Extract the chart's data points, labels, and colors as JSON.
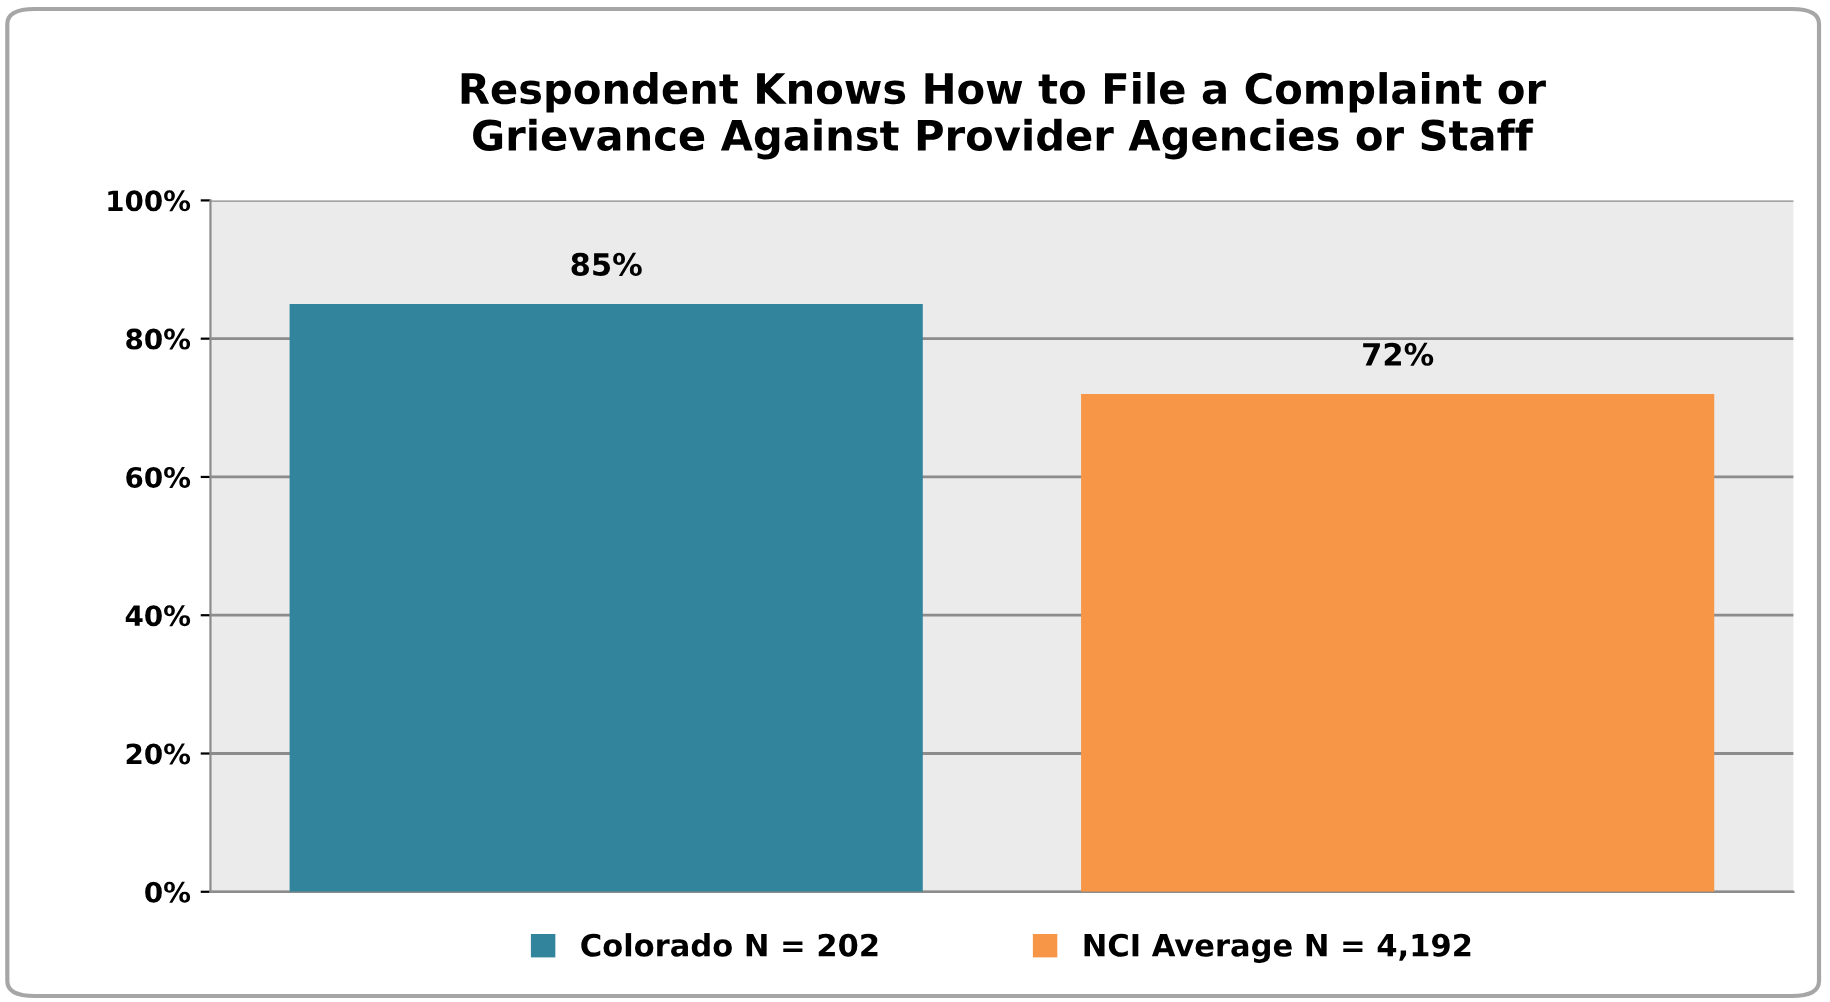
{
  "chart_data": {
    "type": "bar",
    "title": "Respondent Knows How to File a Complaint or\nGrievance Against Provider Agencies or Staff",
    "categories": [
      null,
      null
    ],
    "series": [
      {
        "name": "Colorado N = 202",
        "color": "#31849b",
        "values": [
          85,
          null
        ]
      },
      {
        "name": "NCI Average N = 4,192",
        "color": "#f79646",
        "values": [
          null,
          72
        ]
      }
    ],
    "value_labels": [
      [
        "85%",
        null
      ],
      [
        null,
        "72%"
      ]
    ],
    "ylim": [
      0,
      100
    ],
    "yticks": [
      {
        "value": 0,
        "label": "0%"
      },
      {
        "value": 20,
        "label": "20%"
      },
      {
        "value": 40,
        "label": "40%"
      },
      {
        "value": 60,
        "label": "60%"
      },
      {
        "value": 80,
        "label": "80%"
      },
      {
        "value": 100,
        "label": "100%"
      }
    ],
    "grid": "y",
    "legend": "bottom"
  }
}
